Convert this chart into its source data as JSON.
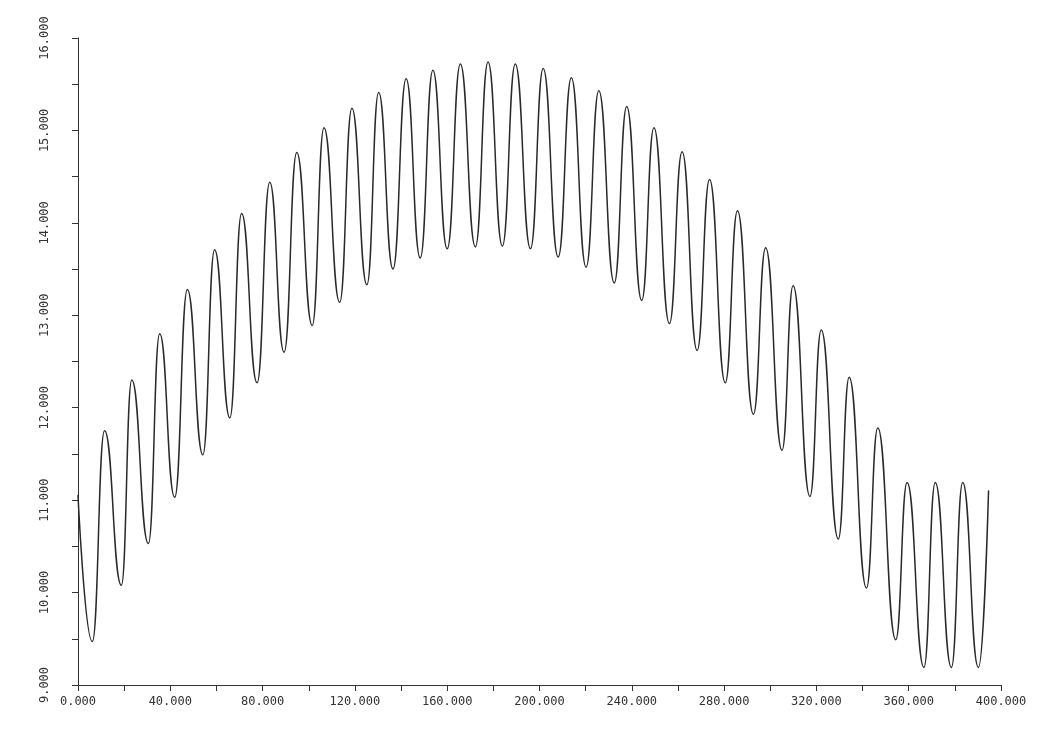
{
  "chart_data": {
    "type": "line",
    "marker": "none",
    "line_style": "solid",
    "grid": false,
    "xlim": [
      0,
      400
    ],
    "ylim": [
      9,
      16
    ],
    "xticks": [
      {
        "value": 0,
        "label": "0.000"
      },
      {
        "value": 20,
        "label": null
      },
      {
        "value": 40,
        "label": "40.000"
      },
      {
        "value": 60,
        "label": null
      },
      {
        "value": 80,
        "label": "80.000"
      },
      {
        "value": 100,
        "label": null
      },
      {
        "value": 120,
        "label": "120.000"
      },
      {
        "value": 140,
        "label": null
      },
      {
        "value": 160,
        "label": "160.000"
      },
      {
        "value": 180,
        "label": null
      },
      {
        "value": 200,
        "label": "200.000"
      },
      {
        "value": 220,
        "label": null
      },
      {
        "value": 240,
        "label": "240.000"
      },
      {
        "value": 260,
        "label": null
      },
      {
        "value": 280,
        "label": "280.000"
      },
      {
        "value": 300,
        "label": null
      },
      {
        "value": 320,
        "label": "320.000"
      },
      {
        "value": 340,
        "label": null
      },
      {
        "value": 360,
        "label": "360.000"
      },
      {
        "value": 380,
        "label": null
      },
      {
        "value": 400,
        "label": "400.000"
      }
    ],
    "yticks": [
      {
        "value": 9,
        "label": "9.000"
      },
      {
        "value": 9.5,
        "label": null
      },
      {
        "value": 10,
        "label": "10.000"
      },
      {
        "value": 10.5,
        "label": null
      },
      {
        "value": 11,
        "label": "11.000"
      },
      {
        "value": 11.5,
        "label": null
      },
      {
        "value": 12,
        "label": "12.000"
      },
      {
        "value": 12.5,
        "label": null
      },
      {
        "value": 13,
        "label": "13.000"
      },
      {
        "value": 13.5,
        "label": null
      },
      {
        "value": 14,
        "label": "14.000"
      },
      {
        "value": 14.5,
        "label": null
      },
      {
        "value": 15,
        "label": "15.000"
      },
      {
        "value": 15.5,
        "label": null
      },
      {
        "value": 16,
        "label": "16.000"
      }
    ],
    "series": [
      {
        "color": "#2a2a2a",
        "x": [
          0,
          6.2,
          11.5,
          18.8,
          23.3,
          30.5,
          35.4,
          41.9,
          47.4,
          54.1,
          59.2,
          65.8,
          70.9,
          77.6,
          83.1,
          89.3,
          94.8,
          101.5,
          106.6,
          113.4,
          118.7,
          125.2,
          130.3,
          136.5,
          142.2,
          148.3,
          153.8,
          160.0,
          165.7,
          172.2,
          177.7,
          183.9,
          189.5,
          196.1,
          201.6,
          208.1,
          213.8,
          220.2,
          225.7,
          232.4,
          237.8,
          244.3,
          249.6,
          256.3,
          261.8,
          268.3,
          273.7,
          280.5,
          285.8,
          292.7,
          298.0,
          305.1,
          309.9,
          317.2,
          322.1,
          329.5,
          334.2,
          341.7,
          346.6,
          354.4,
          359.3,
          366.6,
          371.5,
          378.5,
          383.4,
          390.2,
          394.6
        ],
        "values": [
          11.05,
          9.47,
          11.75,
          10.08,
          12.3,
          10.53,
          12.8,
          11.03,
          13.28,
          11.49,
          13.71,
          11.89,
          14.1,
          12.27,
          14.44,
          12.6,
          14.76,
          12.89,
          15.03,
          13.14,
          15.24,
          13.33,
          15.41,
          13.5,
          15.56,
          13.62,
          15.65,
          13.72,
          15.72,
          13.74,
          15.74,
          13.75,
          15.72,
          13.72,
          15.67,
          13.63,
          15.57,
          13.52,
          15.43,
          13.35,
          15.26,
          13.16,
          15.03,
          12.91,
          14.77,
          12.62,
          14.47,
          12.27,
          14.13,
          11.93,
          13.73,
          11.54,
          13.32,
          11.04,
          12.84,
          10.58,
          12.33,
          10.05,
          11.78,
          9.49,
          11.19,
          9.19,
          11.19,
          9.19,
          11.19,
          9.19,
          11.1
        ]
      }
    ]
  }
}
